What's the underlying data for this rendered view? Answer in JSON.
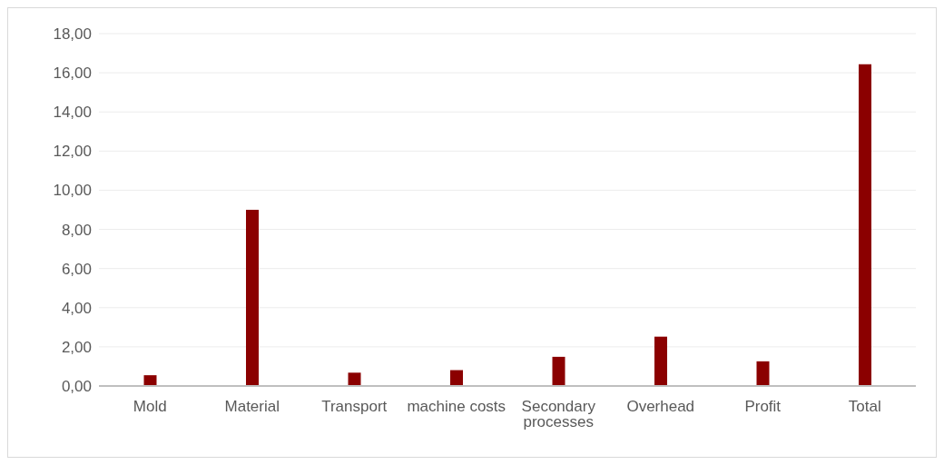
{
  "chart_data": {
    "type": "bar",
    "categories": [
      "Mold",
      "Material",
      "Transport",
      "machine costs",
      "Secondary processes",
      "Overhead",
      "Profit",
      "Total"
    ],
    "values": [
      0.55,
      9.0,
      0.68,
      0.81,
      1.49,
      2.52,
      1.26,
      16.43
    ],
    "color": "#8b0000",
    "ylim": [
      0,
      18
    ],
    "yticks": [
      {
        "value": 0,
        "label": "0,00"
      },
      {
        "value": 2,
        "label": "2,00"
      },
      {
        "value": 4,
        "label": "4,00"
      },
      {
        "value": 6,
        "label": "6,00"
      },
      {
        "value": 8,
        "label": "8,00"
      },
      {
        "value": 10,
        "label": "10,00"
      },
      {
        "value": 12,
        "label": "12,00"
      },
      {
        "value": 14,
        "label": "14,00"
      },
      {
        "value": 16,
        "label": "16,00"
      },
      {
        "value": 18,
        "label": "18,00"
      }
    ],
    "grid": "y"
  }
}
